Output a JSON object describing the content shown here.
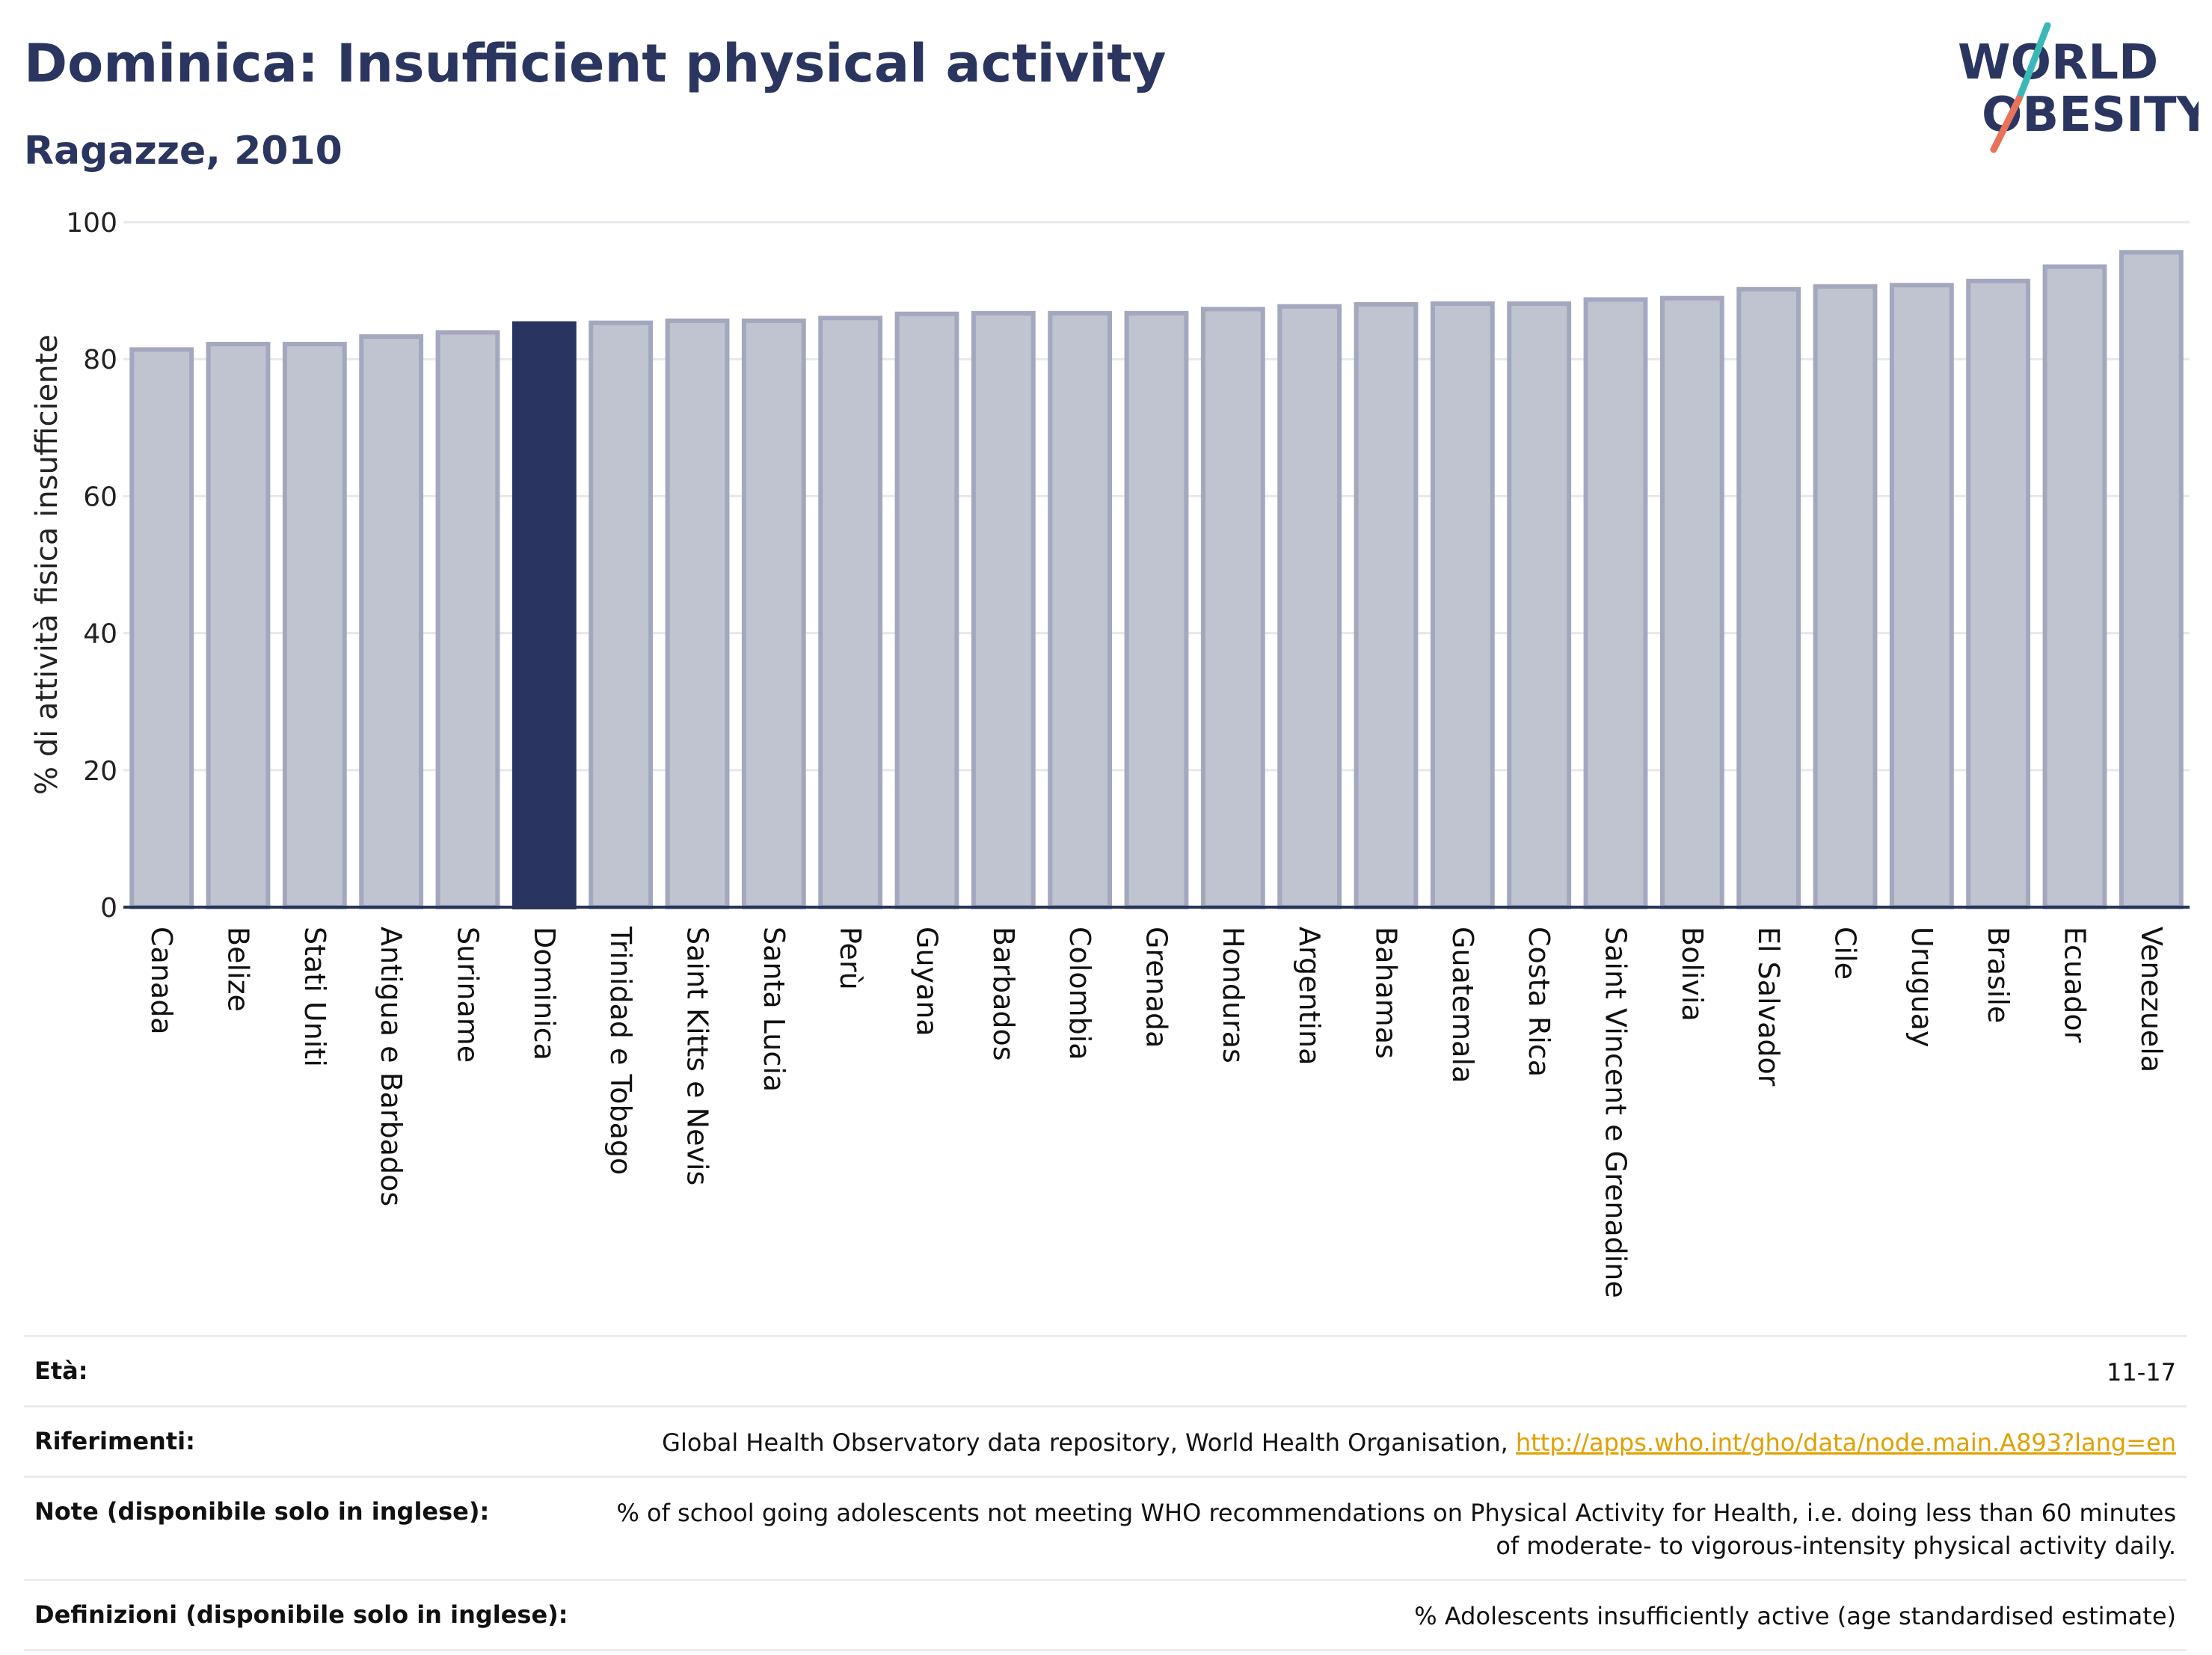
{
  "header": {
    "title": "Dominica: Insufficient physical activity",
    "subtitle": "Ragazze, 2010"
  },
  "logo": {
    "line1": "WORLD",
    "line2": "OBESITY"
  },
  "colors": {
    "highlight": "#293560",
    "bar_fill": "#c0c3d0",
    "bar_border": "#a3a8bf",
    "grid": "#e6e8ed",
    "axis": "#283459",
    "logo_text": "#2a3560",
    "logo_teal": "#3ab8b8",
    "logo_coral": "#e8735a",
    "link": "#e0a000"
  },
  "chart_data": {
    "type": "bar",
    "ylabel": "% di attività fisica insufficiente",
    "xlabel": "",
    "ylim": [
      0,
      100
    ],
    "yticks": [
      0,
      20,
      40,
      60,
      80,
      100
    ],
    "grid": true,
    "highlight": "Dominica",
    "categories": [
      "Canada",
      "Belize",
      "Stati Uniti",
      "Antigua e Barbados",
      "Suriname",
      "Dominica",
      "Trinidad e Tobago",
      "Saint Kitts e Nevis",
      "Santa Lucia",
      "Perù",
      "Guyana",
      "Barbados",
      "Colombia",
      "Grenada",
      "Honduras",
      "Argentina",
      "Bahamas",
      "Guatemala",
      "Costa Rica",
      "Saint Vincent e Grenadine",
      "Bolivia",
      "El Salvador",
      "Cile",
      "Uruguay",
      "Brasile",
      "Ecuador",
      "Venezuela"
    ],
    "values": [
      81.4,
      82.2,
      82.2,
      83.3,
      83.9,
      85.2,
      85.3,
      85.6,
      85.6,
      86.0,
      86.6,
      86.7,
      86.7,
      86.7,
      87.3,
      87.7,
      88.0,
      88.1,
      88.1,
      88.7,
      88.9,
      90.2,
      90.6,
      90.8,
      91.4,
      93.5,
      95.6
    ]
  },
  "info": {
    "rows": [
      {
        "label": "Età:",
        "value": "11-17"
      },
      {
        "label": "Riferimenti:",
        "value": "Global Health Observatory data repository, World Health Organisation,",
        "link": "http://apps.who.int/gho/data/node.main.A893?lang=en"
      },
      {
        "label": "Note (disponibile solo in inglese):",
        "value": "% of school going adolescents not meeting WHO recommendations on Physical Activity for Health, i.e. doing less than 60 minutes of moderate- to vigorous-intensity physical activity daily."
      },
      {
        "label": "Definizioni (disponibile solo in inglese):",
        "value": "% Adolescents insufficiently active (age standardised estimate)"
      }
    ]
  }
}
